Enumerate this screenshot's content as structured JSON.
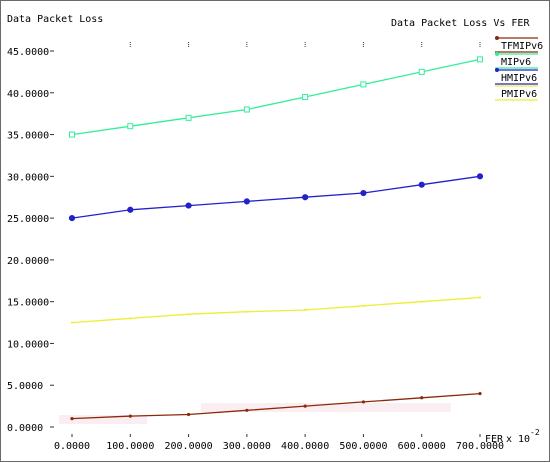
{
  "chart_data": {
    "type": "line",
    "title": "Data Packet Loss Vs FER",
    "ylabel": "Data Packet Loss",
    "xlabel": "FER",
    "xlabel_exponent": "x 10",
    "xlabel_exponent_power": "-2",
    "x": [
      0,
      100,
      200,
      300,
      400,
      500,
      600,
      700
    ],
    "x_tick_labels": [
      "0.0000",
      "100.0000",
      "200.0000",
      "300.0000",
      "400.0000",
      "500.0000",
      "600.0000",
      "700.0000"
    ],
    "xlim": [
      0,
      700
    ],
    "ylim": [
      0,
      45
    ],
    "y_ticks": [
      0,
      5,
      10,
      15,
      20,
      25,
      30,
      35,
      40,
      45
    ],
    "y_tick_labels": [
      "0.0000",
      "5.0000",
      "10.0000",
      "15.0000",
      "20.0000",
      "25.0000",
      "30.0000",
      "35.0000",
      "40.0000",
      "45.0000"
    ],
    "grid": false,
    "legend_position": "top-right",
    "series": [
      {
        "name": "TFMIPv6",
        "color": "#8b2a0a",
        "marker": "dot",
        "values": [
          1.0,
          1.3,
          1.5,
          2.0,
          2.5,
          3.0,
          3.5,
          4.0
        ]
      },
      {
        "name": "MIPv6",
        "color": "#33ee99",
        "marker": "square",
        "values": [
          35.0,
          36.0,
          37.0,
          38.0,
          39.5,
          41.0,
          42.5,
          44.0
        ]
      },
      {
        "name": "HMIPv6",
        "color": "#2222cc",
        "marker": "circle",
        "values": [
          25.0,
          26.0,
          26.5,
          27.0,
          27.5,
          28.0,
          29.0,
          30.0
        ]
      },
      {
        "name": "PMIPv6",
        "color": "#eeee33",
        "marker": "none",
        "values": [
          12.5,
          13.0,
          13.5,
          13.8,
          14.0,
          14.5,
          15.0,
          15.5
        ]
      }
    ]
  }
}
